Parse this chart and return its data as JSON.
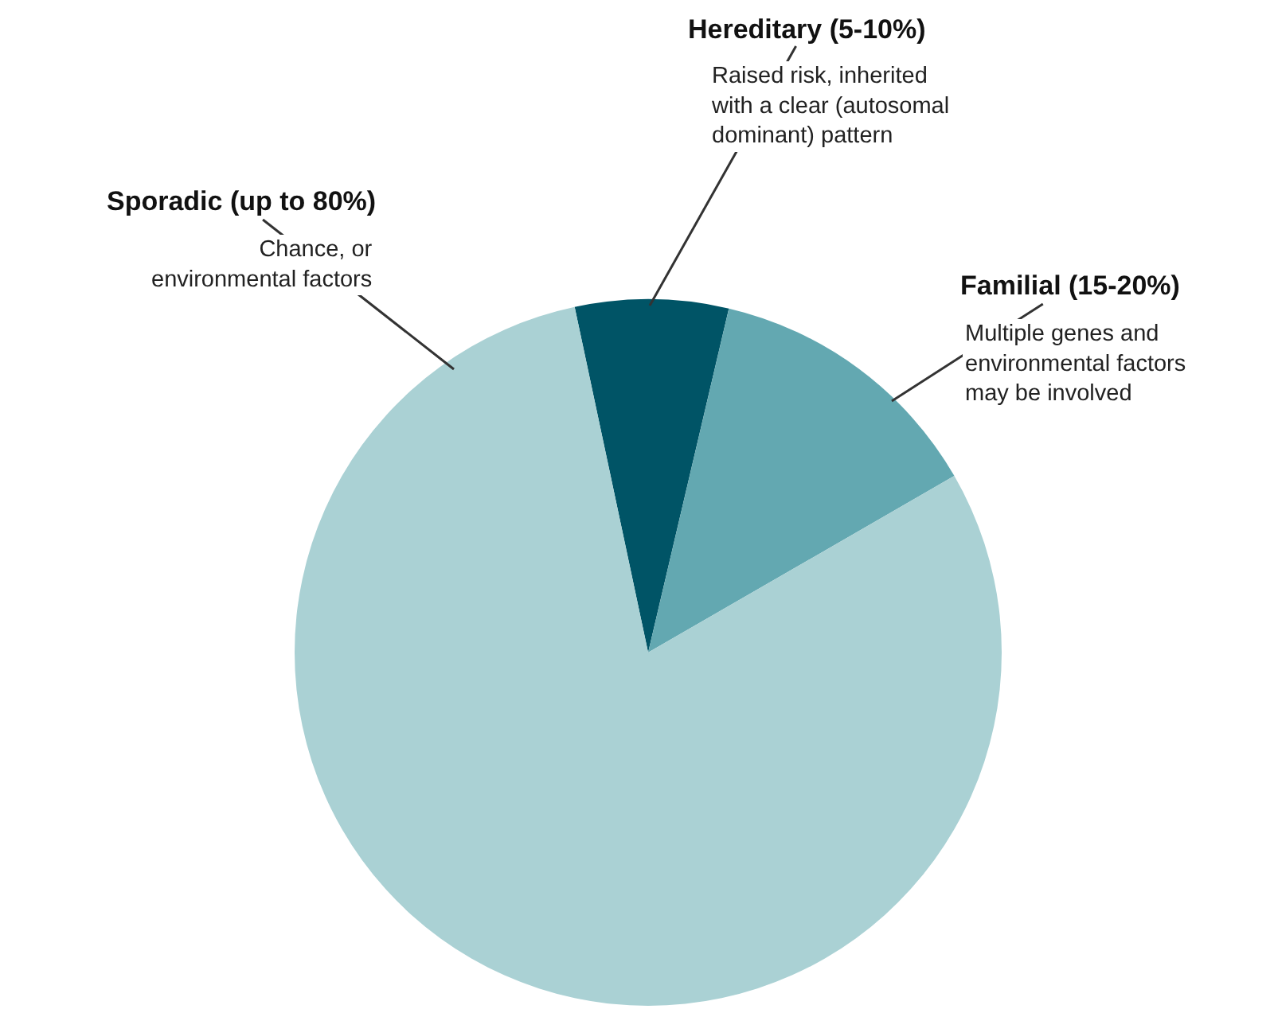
{
  "chart_data": {
    "type": "pie",
    "categories": [
      "Hereditary (5-10%)",
      "Familial (15-20%)",
      "Sporadic (up to 80%)"
    ],
    "values": [
      7,
      13,
      80
    ],
    "colors": [
      "#005466",
      "#63a8b1",
      "#aad1d4"
    ],
    "annotations": [
      "Raised risk, inherited\nwith a clear (autosomal\ndominant) pattern",
      "Multiple genes and\nenvironmental factors\nmay be involved",
      "Chance, or\nenvironmental factors"
    ],
    "legend": false
  }
}
